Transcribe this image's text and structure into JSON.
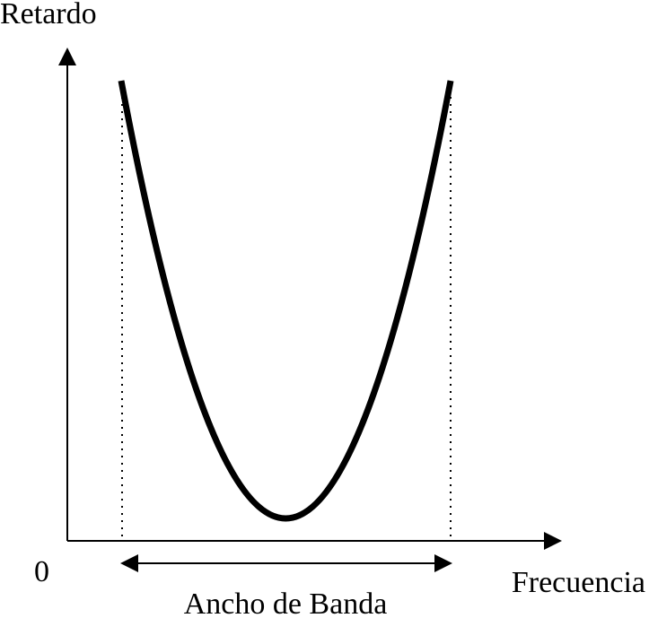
{
  "labels": {
    "y_axis": "Retardo",
    "origin": "0",
    "x_axis": "Frecuencia",
    "bandwidth": "Ancho de Banda"
  }
}
